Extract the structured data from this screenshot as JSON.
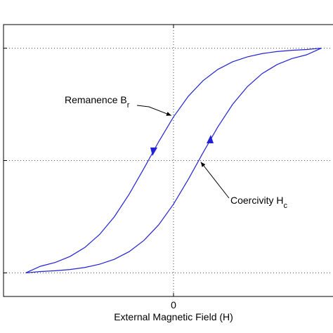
{
  "chart_data": {
    "type": "line",
    "xlabel": "External Magnetic Field (H)",
    "x": [
      -1,
      -0.9,
      -0.8,
      -0.7,
      -0.6,
      -0.5,
      -0.4,
      -0.3,
      -0.2,
      -0.1,
      0,
      0.1,
      0.2,
      0.3,
      0.4,
      0.5,
      0.6,
      0.7,
      0.8,
      0.9,
      1
    ],
    "series": [
      {
        "color": "#2222d4",
        "values": [
          -1,
          -0.941,
          -0.907,
          -0.854,
          -0.774,
          -0.658,
          -0.5,
          -0.3,
          -0.07,
          0.168,
          0.388,
          0.572,
          0.711,
          0.811,
          0.879,
          0.923,
          0.952,
          0.97,
          0.981,
          0.988,
          1
        ]
      },
      {
        "color": "#2222d4",
        "values": [
          -1,
          -0.988,
          -0.981,
          -0.97,
          -0.952,
          -0.923,
          -0.879,
          -0.811,
          -0.711,
          -0.572,
          -0.388,
          -0.168,
          0.07,
          0.3,
          0.5,
          0.658,
          0.774,
          0.854,
          0.907,
          0.941,
          1
        ]
      }
    ],
    "xlim": [
      -1.15,
      1.06
    ],
    "ylim": [
      -1.21,
      1.21
    ],
    "xticks": [
      0
    ],
    "yticks": [
      -1,
      0,
      1
    ],
    "grid": true,
    "annotations": [
      {
        "text": "Remanence B",
        "subscript": "r",
        "x": 0,
        "y": 0.388
      },
      {
        "text": "Coercivity H",
        "subscript": "c",
        "x": 0.17,
        "y": 0
      }
    ]
  }
}
